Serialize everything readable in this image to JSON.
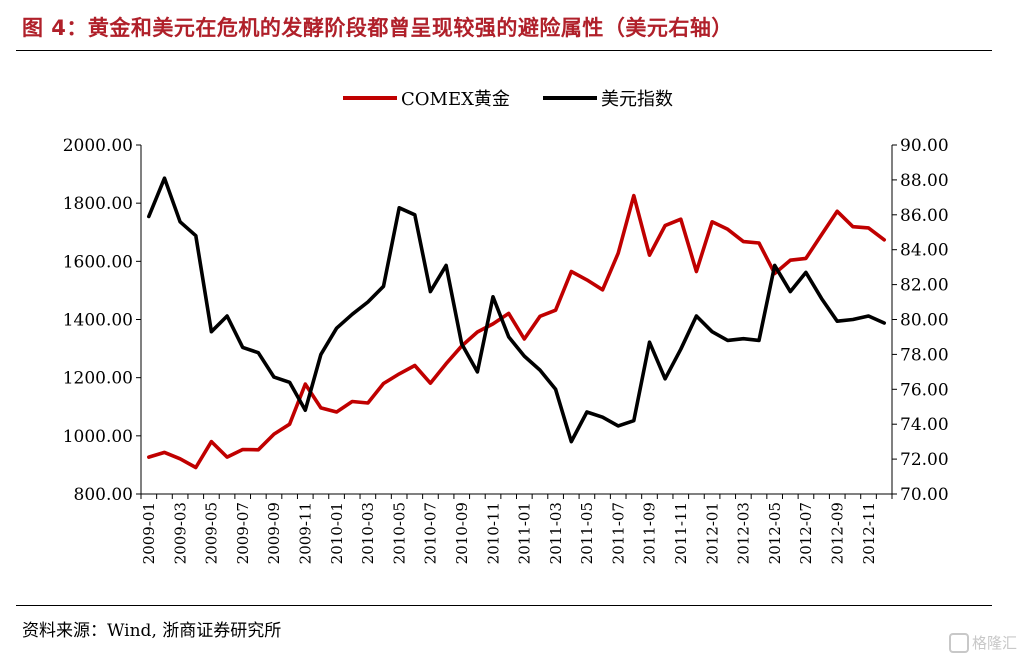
{
  "header": {
    "title": "图 4：黄金和美元在危机的发酵阶段都曾呈现较强的避险属性（美元右轴）"
  },
  "footer": {
    "source": "资料来源：Wind, 浙商证券研究所",
    "watermark": "格隆汇"
  },
  "colors": {
    "gold": "#c00000",
    "usd": "#000000",
    "title": "#b0202a"
  },
  "chart_data": {
    "type": "line",
    "legend_position": "top-center",
    "grid": false,
    "x": [
      "2009-01",
      "2009-02",
      "2009-03",
      "2009-04",
      "2009-05",
      "2009-06",
      "2009-07",
      "2009-08",
      "2009-09",
      "2009-10",
      "2009-11",
      "2009-12",
      "2010-01",
      "2010-02",
      "2010-03",
      "2010-04",
      "2010-05",
      "2010-06",
      "2010-07",
      "2010-08",
      "2010-09",
      "2010-10",
      "2010-11",
      "2010-12",
      "2011-01",
      "2011-02",
      "2011-03",
      "2011-04",
      "2011-05",
      "2011-06",
      "2011-07",
      "2011-08",
      "2011-09",
      "2011-10",
      "2011-11",
      "2011-12",
      "2012-01",
      "2012-02",
      "2012-03",
      "2012-04",
      "2012-05",
      "2012-06",
      "2012-07",
      "2012-08",
      "2012-09",
      "2012-10",
      "2012-11",
      "2012-12"
    ],
    "x_tick_labels": [
      "2009-01",
      "2009-03",
      "2009-05",
      "2009-07",
      "2009-09",
      "2009-11",
      "2010-01",
      "2010-03",
      "2010-05",
      "2010-07",
      "2010-09",
      "2010-11",
      "2011-01",
      "2011-03",
      "2011-05",
      "2011-07",
      "2011-09",
      "2011-11",
      "2012-01",
      "2012-03",
      "2012-05",
      "2012-07",
      "2012-09",
      "2012-11"
    ],
    "y_left": {
      "min": 800,
      "max": 2000,
      "ticks": [
        "800.00",
        "1000.00",
        "1200.00",
        "1400.00",
        "1600.00",
        "1800.00",
        "2000.00"
      ]
    },
    "y_right": {
      "min": 70,
      "max": 90,
      "ticks": [
        "70.00",
        "72.00",
        "74.00",
        "76.00",
        "78.00",
        "80.00",
        "82.00",
        "84.00",
        "86.00",
        "88.00",
        "90.00"
      ]
    },
    "series": [
      {
        "name": "COMEX黄金",
        "axis": "left",
        "color": "#c00000",
        "values": [
          927,
          943,
          921,
          891,
          980,
          927,
          953,
          952,
          1006,
          1040,
          1178,
          1096,
          1082,
          1118,
          1113,
          1180,
          1213,
          1242,
          1181,
          1248,
          1309,
          1357,
          1385,
          1421,
          1333,
          1411,
          1432,
          1565,
          1536,
          1502,
          1628,
          1826,
          1621,
          1723,
          1745,
          1565,
          1736,
          1710,
          1668,
          1663,
          1558,
          1604,
          1610,
          1692,
          1772,
          1719,
          1715,
          1674
        ]
      },
      {
        "name": "美元指数",
        "axis": "right",
        "color": "#000000",
        "values": [
          85.9,
          88.1,
          85.6,
          84.8,
          79.3,
          80.2,
          78.4,
          78.1,
          76.7,
          76.4,
          74.8,
          78.0,
          79.5,
          80.3,
          81.0,
          81.9,
          86.4,
          86.0,
          81.6,
          83.1,
          78.6,
          77.0,
          81.3,
          79.0,
          77.9,
          77.1,
          76.0,
          73.0,
          74.7,
          74.4,
          73.9,
          74.2,
          78.7,
          76.6,
          78.3,
          80.2,
          79.3,
          78.8,
          78.9,
          78.8,
          83.1,
          81.6,
          82.7,
          81.2,
          79.9,
          80.0,
          80.2,
          79.8
        ]
      }
    ]
  }
}
